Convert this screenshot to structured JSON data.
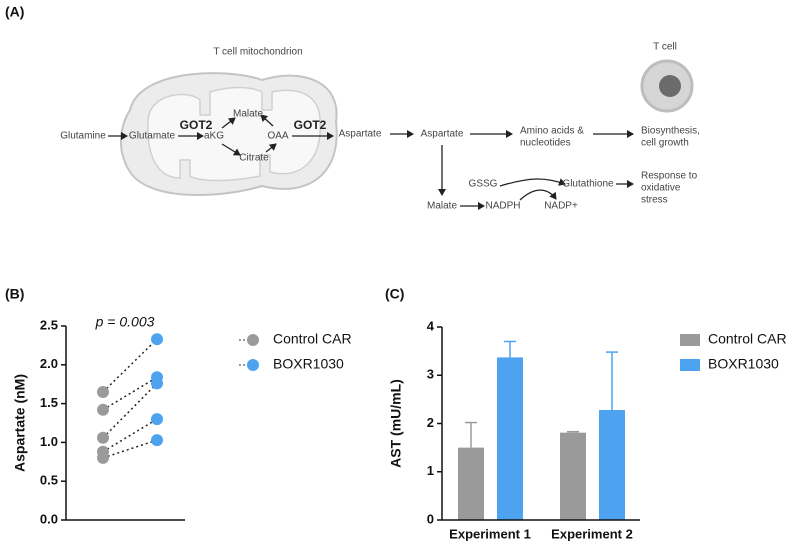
{
  "panel_a": {
    "label": "(A)",
    "title": "T cell mitochondrion",
    "cell_label": "T cell",
    "nodes": [
      [
        "Glutamine"
      ],
      [
        "Glutamate"
      ],
      [
        "GOT2"
      ],
      [
        "aKG"
      ],
      [
        "Malate"
      ],
      [
        "OAA"
      ],
      [
        "Citrate"
      ],
      [
        "GOT2"
      ],
      [
        "Aspartate"
      ],
      [
        "Aspartate"
      ],
      [
        "Amino acids &",
        "nucleotides"
      ],
      [
        "Biosynthesis,",
        "cell growth"
      ],
      [
        "Malate"
      ],
      [
        "NADPH"
      ],
      [
        "GSSG"
      ],
      [
        "Glutathione"
      ],
      [
        "NADP+"
      ],
      [
        "Response to",
        "oxidative",
        "stress"
      ]
    ]
  },
  "chart_data": [
    {
      "type": "paired_dot",
      "panel_label": "(B)",
      "annotation": "p = 0.003",
      "y_label": "Aspartate (nM)",
      "ylim": [
        0,
        2.5
      ],
      "yticks": [
        {
          "value": 0,
          "label": "0.0"
        },
        {
          "value": 0.5,
          "label": "0.5"
        },
        {
          "value": 1,
          "label": "1.0"
        },
        {
          "value": 1.5,
          "label": "1.5"
        },
        {
          "value": 2,
          "label": "2.0"
        },
        {
          "value": 2.5,
          "label": "2.5"
        }
      ],
      "series": [
        {
          "name": "Control CAR",
          "color": "#9a9a9a",
          "values": [
            1.65,
            1.42,
            1.06,
            0.88,
            0.8
          ]
        },
        {
          "name": "BOXR1030",
          "color": "#4da3f0",
          "values": [
            2.33,
            1.84,
            1.76,
            1.3,
            1.03
          ]
        }
      ]
    },
    {
      "type": "bar",
      "panel_label": "(C)",
      "y_label": "AST (mU/mL)",
      "categories": [
        "Experiment 1",
        "Experiment 2"
      ],
      "ylim": [
        0,
        4
      ],
      "yticks": [
        0,
        1,
        2,
        3,
        4
      ],
      "series": [
        {
          "name": "Control CAR",
          "color": "#9a9a9a",
          "values": [
            1.5,
            1.81
          ],
          "errors": [
            0.52,
            0.02
          ]
        },
        {
          "name": "BOXR1030",
          "color": "#4da3f0",
          "values": [
            3.37,
            2.28
          ],
          "errors": [
            0.33,
            1.2
          ]
        }
      ]
    }
  ]
}
